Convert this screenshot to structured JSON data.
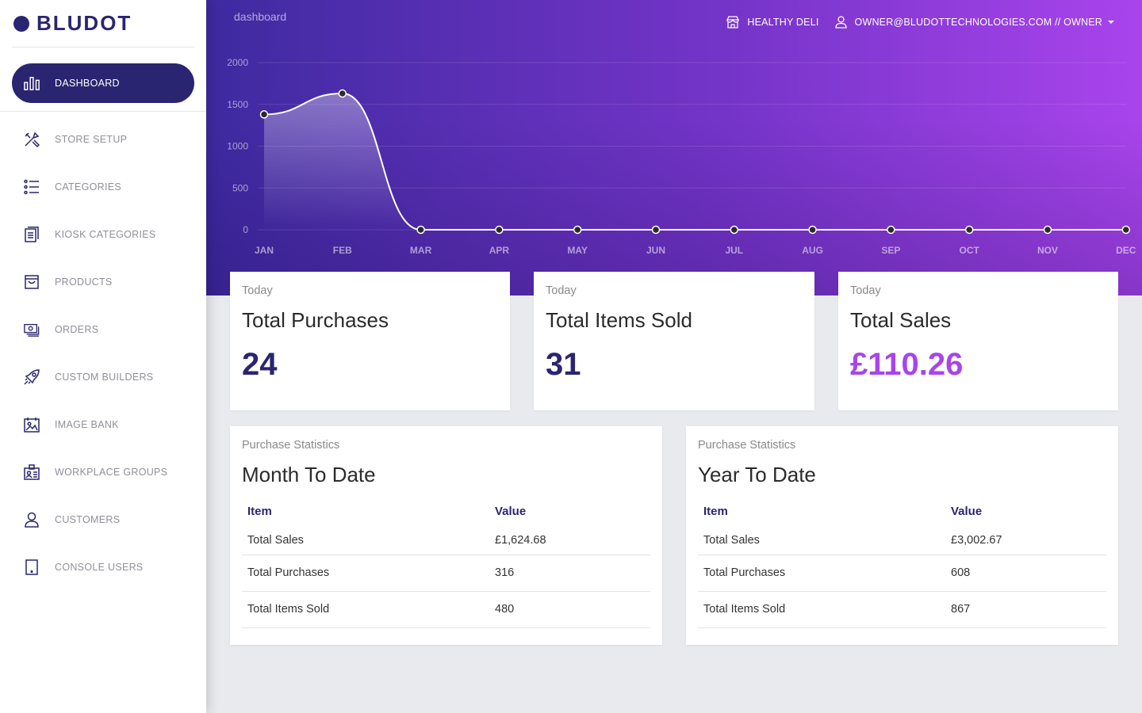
{
  "brand": {
    "name": "BLUDOT"
  },
  "sidebar": {
    "items": [
      {
        "label": "DASHBOARD",
        "icon": "bar-chart-icon",
        "active": true
      },
      {
        "label": "STORE SETUP",
        "icon": "tools-icon"
      },
      {
        "label": "CATEGORIES",
        "icon": "list-icon"
      },
      {
        "label": "KIOSK CATEGORIES",
        "icon": "document-list-icon"
      },
      {
        "label": "PRODUCTS",
        "icon": "shopping-bag-icon"
      },
      {
        "label": "ORDERS",
        "icon": "money-icon"
      },
      {
        "label": "CUSTOM BUILDERS",
        "icon": "rocket-icon"
      },
      {
        "label": "IMAGE BANK",
        "icon": "image-icon"
      },
      {
        "label": "WORKPLACE GROUPS",
        "icon": "id-badge-icon"
      },
      {
        "label": "CUSTOMERS",
        "icon": "user-icon"
      },
      {
        "label": "CONSOLE USERS",
        "icon": "tablet-icon"
      }
    ]
  },
  "header": {
    "breadcrumb": "dashboard",
    "store": "HEALTHY DELI",
    "user": "OWNER@BLUDOTTECHNOLOGIES.COM // OWNER"
  },
  "colors": {
    "primary": "#2a2570",
    "accent": "#a944ec",
    "band_start": "#3e2aa0",
    "band_end": "#a944ec"
  },
  "chart_data": {
    "type": "line",
    "categories": [
      "JAN",
      "FEB",
      "MAR",
      "APR",
      "MAY",
      "JUN",
      "JUL",
      "AUG",
      "SEP",
      "OCT",
      "NOV",
      "DEC"
    ],
    "values": [
      1380,
      1630,
      0,
      0,
      0,
      0,
      0,
      0,
      0,
      0,
      0,
      0
    ],
    "yticks": [
      "0",
      "500",
      "1000",
      "1500",
      "2000"
    ],
    "ylim": [
      0,
      2000
    ],
    "grid": true
  },
  "stats": [
    {
      "category": "Today",
      "title": "Total Purchases",
      "value": "24"
    },
    {
      "category": "Today",
      "title": "Total Items Sold",
      "value": "31"
    },
    {
      "category": "Today",
      "title": "Total Sales",
      "value": "£110.26"
    }
  ],
  "tables": [
    {
      "category": "Purchase Statistics",
      "title": "Month To Date",
      "headers": [
        "Item",
        "Value"
      ],
      "rows": [
        [
          "Total Sales",
          "£1,624.68"
        ],
        [
          "Total Purchases",
          "316"
        ],
        [
          "Total Items Sold",
          "480"
        ]
      ]
    },
    {
      "category": "Purchase Statistics",
      "title": "Year To Date",
      "headers": [
        "Item",
        "Value"
      ],
      "rows": [
        [
          "Total Sales",
          "£3,002.67"
        ],
        [
          "Total Purchases",
          "608"
        ],
        [
          "Total Items Sold",
          "867"
        ]
      ]
    }
  ]
}
